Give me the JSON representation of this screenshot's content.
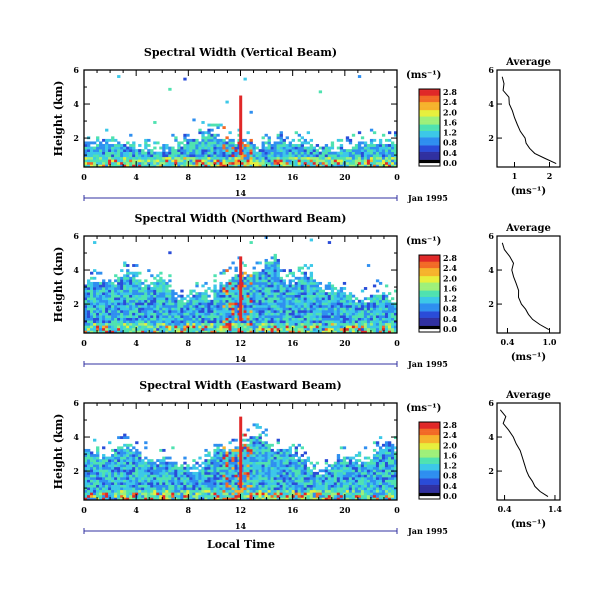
{
  "figure": {
    "xlabel": "Local Time",
    "date_label": "Jan 1995",
    "day_label": "14",
    "x_ticks": [
      "0",
      "4",
      "8",
      "12",
      "16",
      "20",
      "0"
    ],
    "y_ticks": [
      "2",
      "4",
      "6"
    ],
    "ylabel": "Height (km)",
    "cbar_unit": "(ms⁻¹)",
    "avg_title": "Average",
    "avg_xlabel": "(ms⁻¹)",
    "colormap": [
      "#ffffff",
      "#000000",
      "#3030a0",
      "#2a4cd8",
      "#2f8ff0",
      "#3cc8e8",
      "#4fe2b0",
      "#9ef07a",
      "#e7ef3c",
      "#f6b32c",
      "#f26a26",
      "#e02828"
    ]
  },
  "chart_data": [
    {
      "type": "heatmap",
      "title": "Spectral Width (Vertical Beam)",
      "xlabel": "Local Time",
      "ylabel": "Height (km)",
      "xlim": [
        0,
        24
      ],
      "ylim": [
        0.3,
        6
      ],
      "x_ticks": [
        "0",
        "4",
        "8",
        "12",
        "16",
        "20",
        "0"
      ],
      "y_ticks": [
        2,
        4,
        6
      ],
      "cbar_unit": "(ms⁻¹)",
      "cbar_ticks": [
        "0.0",
        "0.4",
        "0.8",
        "1.2",
        "1.6",
        "2.0",
        "2.4",
        "2.8"
      ],
      "cbar_range": [
        0,
        2.8
      ],
      "profile": {
        "title": "Average",
        "xlabel": "(ms⁻¹)",
        "x_ticks": [
          "1",
          "2"
        ],
        "xlim": [
          0.5,
          2.3
        ],
        "height": [
          0.5,
          0.8,
          1.1,
          1.4,
          1.7,
          2.0,
          2.4,
          2.8,
          3.2,
          3.6,
          4.0,
          4.4,
          4.8,
          5.2,
          5.6
        ],
        "value": [
          2.2,
          1.85,
          1.6,
          1.45,
          1.35,
          1.3,
          1.15,
          1.1,
          1.0,
          0.95,
          0.85,
          0.8,
          0.7,
          0.65,
          0.6
        ]
      }
    },
    {
      "type": "heatmap",
      "title": "Spectral Width (Northward Beam)",
      "xlabel": "Local Time",
      "ylabel": "Height (km)",
      "xlim": [
        0,
        24
      ],
      "ylim": [
        0.3,
        6
      ],
      "x_ticks": [
        "0",
        "4",
        "8",
        "12",
        "16",
        "20",
        "0"
      ],
      "y_ticks": [
        2,
        4,
        6
      ],
      "cbar_unit": "(ms⁻¹)",
      "cbar_ticks": [
        "0.0",
        "0.4",
        "0.8",
        "1.2",
        "1.6",
        "2.0",
        "2.4",
        "2.8"
      ],
      "cbar_range": [
        0,
        2.8
      ],
      "profile": {
        "title": "Average",
        "xlabel": "(ms⁻¹)",
        "x_ticks": [
          "0.4",
          "1.0"
        ],
        "xlim": [
          0.25,
          1.15
        ],
        "height": [
          0.5,
          0.8,
          1.1,
          1.4,
          1.7,
          2.0,
          2.4,
          2.8,
          3.2,
          3.6,
          4.0,
          4.4,
          4.8,
          5.2,
          5.6
        ],
        "value": [
          1.0,
          0.85,
          0.75,
          0.7,
          0.65,
          0.6,
          0.57,
          0.55,
          0.52,
          0.5,
          0.48,
          0.45,
          0.4,
          0.38,
          0.36
        ]
      }
    },
    {
      "type": "heatmap",
      "title": "Spectral Width (Eastward Beam)",
      "xlabel": "Local Time",
      "ylabel": "Height (km)",
      "xlim": [
        0,
        24
      ],
      "ylim": [
        0.3,
        6
      ],
      "x_ticks": [
        "0",
        "4",
        "8",
        "12",
        "16",
        "20",
        "0"
      ],
      "y_ticks": [
        2,
        4,
        6
      ],
      "cbar_unit": "(ms⁻¹)",
      "cbar_ticks": [
        "0.0",
        "0.4",
        "0.8",
        "1.2",
        "1.6",
        "2.0",
        "2.4",
        "2.8"
      ],
      "cbar_range": [
        0,
        2.8
      ],
      "profile": {
        "title": "Average",
        "xlabel": "(ms⁻¹)",
        "x_ticks": [
          "0.4",
          "1.4"
        ],
        "xlim": [
          0.25,
          1.5
        ],
        "height": [
          0.5,
          0.8,
          1.1,
          1.4,
          1.7,
          2.0,
          2.4,
          2.8,
          3.2,
          3.6,
          4.0,
          4.4,
          4.8,
          5.2,
          5.6
        ],
        "value": [
          1.25,
          1.1,
          1.0,
          0.95,
          0.9,
          0.85,
          0.8,
          0.75,
          0.7,
          0.62,
          0.55,
          0.5,
          0.42,
          0.38,
          0.35
        ]
      }
    }
  ]
}
